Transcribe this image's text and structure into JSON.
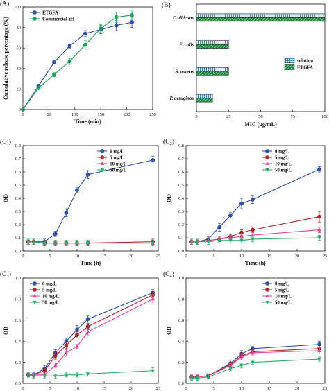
{
  "chart_data": [
    {
      "id": "A",
      "panel_label": "(A)",
      "type": "line",
      "title": "",
      "xlabel": "Time (min)",
      "ylabel": "Cumulative release percentage (%)",
      "xlim": [
        0,
        250
      ],
      "ylim": [
        0,
        100
      ],
      "xticks": [
        0,
        50,
        100,
        150,
        200,
        250
      ],
      "yticks": [
        0,
        20,
        40,
        60,
        80,
        100
      ],
      "grid": false,
      "legend_position": "top-left",
      "series": [
        {
          "name": "ETGFA",
          "color": "#2e4fa3",
          "marker": "circle",
          "x": [
            0,
            30,
            60,
            90,
            120,
            150,
            180,
            210
          ],
          "y": [
            0,
            23,
            46,
            62,
            74,
            78,
            82,
            85
          ],
          "err": [
            0,
            1.5,
            1.5,
            2,
            3,
            4,
            5,
            5
          ]
        },
        {
          "name": "Commercial gel",
          "color": "#1f9d5a",
          "marker": "circle",
          "x": [
            0,
            30,
            60,
            90,
            120,
            150,
            180,
            210
          ],
          "y": [
            0,
            21,
            34,
            47,
            63,
            79,
            90,
            92
          ],
          "err": [
            0,
            1.5,
            2,
            3,
            4,
            4,
            5,
            5
          ]
        }
      ]
    },
    {
      "id": "B",
      "panel_label": "(B)",
      "type": "bar",
      "orientation": "horizontal",
      "title": "",
      "xlabel": "MIC (μg/mL)",
      "ylabel": "",
      "xlim": [
        0,
        100
      ],
      "xticks": [
        0,
        25,
        50,
        75,
        100
      ],
      "grid": false,
      "legend_position": "bottom-right",
      "categories": [
        "C.albicans",
        "E. colis",
        "S. aureus",
        "P. aeruginos"
      ],
      "series": [
        {
          "name": "solution",
          "pattern": "grid",
          "color": "#2e6fa3",
          "values": [
            100,
            25,
            25,
            12.5
          ]
        },
        {
          "name": "ETGFA",
          "pattern": "diagonal",
          "color": "#1f8a45",
          "values": [
            100,
            25,
            25,
            12.5
          ]
        }
      ]
    },
    {
      "id": "C1",
      "panel_label": "(C",
      "panel_sub": "1",
      "type": "line",
      "title": "",
      "xlabel": "Time (h)",
      "ylabel": "OD",
      "xlim": [
        0,
        25
      ],
      "ylim": [
        0,
        0.8
      ],
      "xticks": [
        0,
        5,
        10,
        15,
        20,
        25
      ],
      "yticks": [
        0.0,
        0.1,
        0.2,
        0.3,
        0.4,
        0.5,
        0.6,
        0.7,
        0.8
      ],
      "grid": false,
      "legend_position": "top-center",
      "series": [
        {
          "name": "0 mg/L",
          "color": "#2e4fa3",
          "marker": "circle",
          "x": [
            1,
            2,
            4,
            6,
            8,
            10,
            12,
            24
          ],
          "y": [
            0.07,
            0.07,
            0.07,
            0.13,
            0.29,
            0.46,
            0.58,
            0.69
          ],
          "err": [
            0.02,
            0.02,
            0.02,
            0.02,
            0.03,
            0.02,
            0.03,
            0.03
          ]
        },
        {
          "name": "5 mg/L",
          "color": "#a52a2a",
          "marker": "circle",
          "x": [
            1,
            2,
            4,
            6,
            8,
            10,
            12,
            24
          ],
          "y": [
            0.07,
            0.07,
            0.06,
            0.06,
            0.06,
            0.06,
            0.06,
            0.07
          ],
          "err": [
            0.02,
            0.02,
            0.02,
            0.02,
            0.02,
            0.02,
            0.02,
            0.02
          ]
        },
        {
          "name": "10 mg/L",
          "color": "#e0449b",
          "marker": "triangle-up",
          "x": [
            1,
            2,
            4,
            6,
            8,
            10,
            12,
            24
          ],
          "y": [
            0.07,
            0.07,
            0.06,
            0.06,
            0.06,
            0.06,
            0.06,
            0.06
          ],
          "err": [
            0.02,
            0.02,
            0.02,
            0.02,
            0.02,
            0.02,
            0.02,
            0.02
          ]
        },
        {
          "name": "50 mg/L",
          "color": "#2ea86b",
          "marker": "triangle-down",
          "x": [
            1,
            2,
            4,
            6,
            8,
            10,
            12,
            24
          ],
          "y": [
            0.07,
            0.07,
            0.06,
            0.06,
            0.06,
            0.06,
            0.06,
            0.06
          ],
          "err": [
            0.02,
            0.02,
            0.02,
            0.02,
            0.02,
            0.02,
            0.02,
            0.02
          ]
        }
      ]
    },
    {
      "id": "C2",
      "panel_label": "(C",
      "panel_sub": "2",
      "type": "line",
      "title": "",
      "xlabel": "Time (h)",
      "ylabel": "OD",
      "xlim": [
        0,
        25
      ],
      "ylim": [
        0,
        0.8
      ],
      "xticks": [
        0,
        5,
        10,
        15,
        20,
        25
      ],
      "yticks": [
        0.0,
        0.1,
        0.2,
        0.3,
        0.4,
        0.5,
        0.6,
        0.7,
        0.8
      ],
      "grid": false,
      "legend_position": "top-center",
      "series": [
        {
          "name": "0 mg/L",
          "color": "#2e4fa3",
          "marker": "circle",
          "x": [
            1,
            2,
            4,
            6,
            8,
            10,
            12,
            24
          ],
          "y": [
            0.07,
            0.07,
            0.09,
            0.18,
            0.27,
            0.36,
            0.39,
            0.62
          ],
          "err": [
            0.02,
            0.02,
            0.02,
            0.03,
            0.02,
            0.04,
            0.03,
            0.02
          ]
        },
        {
          "name": "5 mg/L",
          "color": "#a52a2a",
          "marker": "circle",
          "x": [
            1,
            2,
            4,
            6,
            8,
            10,
            12,
            24
          ],
          "y": [
            0.07,
            0.07,
            0.08,
            0.09,
            0.11,
            0.14,
            0.16,
            0.26
          ],
          "err": [
            0.02,
            0.02,
            0.02,
            0.02,
            0.02,
            0.02,
            0.02,
            0.04
          ]
        },
        {
          "name": "10 mg/L",
          "color": "#e0449b",
          "marker": "triangle-up",
          "x": [
            1,
            2,
            4,
            6,
            8,
            10,
            12,
            24
          ],
          "y": [
            0.07,
            0.07,
            0.08,
            0.09,
            0.1,
            0.11,
            0.12,
            0.16
          ],
          "err": [
            0.02,
            0.02,
            0.02,
            0.02,
            0.02,
            0.02,
            0.02,
            0.02
          ]
        },
        {
          "name": "50 mg/L",
          "color": "#2ea86b",
          "marker": "triangle-down",
          "x": [
            1,
            2,
            4,
            6,
            8,
            10,
            12,
            24
          ],
          "y": [
            0.07,
            0.07,
            0.07,
            0.08,
            0.08,
            0.08,
            0.09,
            0.1
          ],
          "err": [
            0.02,
            0.02,
            0.02,
            0.02,
            0.02,
            0.02,
            0.02,
            0.02
          ]
        }
      ]
    },
    {
      "id": "C3",
      "panel_label": "(C",
      "panel_sub": "3",
      "type": "line",
      "title": "",
      "xlabel": "Time (h)",
      "ylabel": "OD",
      "xlim": [
        0,
        25
      ],
      "ylim": [
        0,
        1.0
      ],
      "xticks": [
        0,
        5,
        10,
        15,
        20,
        25
      ],
      "yticks": [
        0.0,
        0.2,
        0.4,
        0.6,
        0.8,
        1.0
      ],
      "grid": false,
      "legend_position": "top-left",
      "series": [
        {
          "name": "0 mg/L",
          "color": "#2e4fa3",
          "marker": "circle",
          "x": [
            1,
            2,
            4,
            6,
            8,
            10,
            12,
            24
          ],
          "y": [
            0.08,
            0.08,
            0.14,
            0.29,
            0.4,
            0.51,
            0.61,
            0.86
          ],
          "err": [
            0.02,
            0.02,
            0.03,
            0.03,
            0.03,
            0.04,
            0.03,
            0.03
          ]
        },
        {
          "name": "5 mg/L",
          "color": "#a52a2a",
          "marker": "circle",
          "x": [
            1,
            2,
            4,
            6,
            8,
            10,
            12,
            24
          ],
          "y": [
            0.08,
            0.08,
            0.12,
            0.26,
            0.36,
            0.46,
            0.54,
            0.84
          ],
          "err": [
            0.02,
            0.02,
            0.02,
            0.03,
            0.03,
            0.03,
            0.03,
            0.03
          ]
        },
        {
          "name": "10 mg/L",
          "color": "#e0449b",
          "marker": "triangle-up",
          "x": [
            1,
            2,
            4,
            6,
            8,
            10,
            12,
            24
          ],
          "y": [
            0.08,
            0.08,
            0.08,
            0.17,
            0.29,
            0.35,
            0.49,
            0.8
          ],
          "err": [
            0.02,
            0.02,
            0.02,
            0.02,
            0.03,
            0.02,
            0.03,
            0.03
          ]
        },
        {
          "name": "50 mg/L",
          "color": "#2ea86b",
          "marker": "triangle-down",
          "x": [
            1,
            2,
            4,
            6,
            8,
            10,
            12,
            24
          ],
          "y": [
            0.08,
            0.07,
            0.07,
            0.07,
            0.08,
            0.08,
            0.09,
            0.12
          ],
          "err": [
            0.02,
            0.02,
            0.02,
            0.02,
            0.02,
            0.02,
            0.02,
            0.03
          ]
        }
      ]
    },
    {
      "id": "C4",
      "panel_label": "(C",
      "panel_sub": "4",
      "type": "line",
      "title": "",
      "xlabel": "Time (h)",
      "ylabel": "OD",
      "xlim": [
        0,
        25
      ],
      "ylim": [
        0,
        1.0
      ],
      "xticks": [
        0,
        5,
        10,
        15,
        20,
        25
      ],
      "yticks": [
        0.0,
        0.2,
        0.4,
        0.6,
        0.8,
        1.0
      ],
      "grid": false,
      "legend_position": "top-center",
      "series": [
        {
          "name": "0 mg/L",
          "color": "#2e4fa3",
          "marker": "circle",
          "x": [
            1,
            2,
            4,
            8,
            10,
            12,
            24
          ],
          "y": [
            0.06,
            0.06,
            0.07,
            0.19,
            0.28,
            0.33,
            0.37
          ],
          "err": [
            0.02,
            0.02,
            0.02,
            0.03,
            0.03,
            0.02,
            0.03
          ]
        },
        {
          "name": "5 mg/L",
          "color": "#a52a2a",
          "marker": "circle",
          "x": [
            1,
            2,
            4,
            8,
            10,
            12,
            24
          ],
          "y": [
            0.06,
            0.06,
            0.07,
            0.18,
            0.26,
            0.3,
            0.33
          ],
          "err": [
            0.02,
            0.02,
            0.02,
            0.02,
            0.03,
            0.02,
            0.03
          ]
        },
        {
          "name": "10 mg/L",
          "color": "#e0449b",
          "marker": "triangle-up",
          "x": [
            1,
            2,
            4,
            8,
            10,
            12,
            24
          ],
          "y": [
            0.06,
            0.06,
            0.07,
            0.17,
            0.25,
            0.29,
            0.31
          ],
          "err": [
            0.02,
            0.02,
            0.02,
            0.02,
            0.02,
            0.02,
            0.03
          ]
        },
        {
          "name": "50 mg/L",
          "color": "#2ea86b",
          "marker": "triangle-down",
          "x": [
            1,
            2,
            4,
            8,
            10,
            12,
            24
          ],
          "y": [
            0.05,
            0.05,
            0.06,
            0.14,
            0.17,
            0.2,
            0.23
          ],
          "err": [
            0.02,
            0.02,
            0.02,
            0.02,
            0.02,
            0.02,
            0.02
          ]
        }
      ]
    }
  ]
}
